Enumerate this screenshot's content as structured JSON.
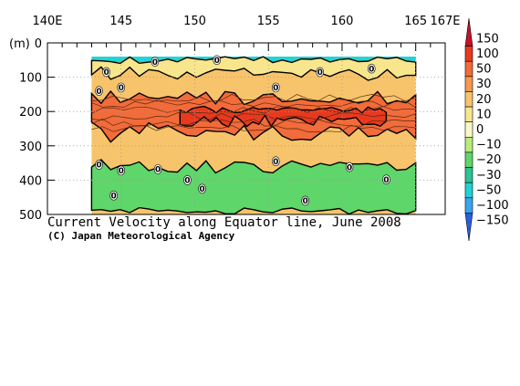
{
  "chart_data": {
    "type": "heatmap",
    "title": "Current Velocity along Equator line, June 2008",
    "credit": "(C) Japan Meteorological Agency",
    "x_ticks": [
      {
        "value": 140,
        "label": "140E"
      },
      {
        "value": 145,
        "label": "145"
      },
      {
        "value": 150,
        "label": "150"
      },
      {
        "value": 155,
        "label": "155"
      },
      {
        "value": 160,
        "label": "160"
      },
      {
        "value": 165,
        "label": "165"
      },
      {
        "value": 167,
        "label": "167E"
      }
    ],
    "y_ticks": [
      {
        "value": 0,
        "label": "0"
      },
      {
        "value": 100,
        "label": "100"
      },
      {
        "value": 200,
        "label": "200"
      },
      {
        "value": 300,
        "label": "300"
      },
      {
        "value": 400,
        "label": "400"
      },
      {
        "value": 500,
        "label": "500"
      }
    ],
    "y_unit": "(m)",
    "xlim": [
      140,
      167
    ],
    "ylim": [
      0,
      500
    ],
    "y_inverted": true,
    "data_extent_x": [
      143,
      165
    ],
    "data_extent_y": [
      40,
      500
    ],
    "grid": true,
    "colorbar": {
      "placement": "right",
      "levels": [
        {
          "label": "150",
          "color": "#c8102a"
        },
        {
          "label": "100",
          "color": "#e8391e"
        },
        {
          "label": "50",
          "color": "#f26b3a"
        },
        {
          "label": "30",
          "color": "#f5994e"
        },
        {
          "label": "20",
          "color": "#f7c46b"
        },
        {
          "label": "10",
          "color": "#f8e68d"
        },
        {
          "label": "0",
          "color": "#fbf8c8"
        },
        {
          "label": "−10",
          "color": "#b9ec7a"
        },
        {
          "label": "−20",
          "color": "#5fd66a"
        },
        {
          "label": "−30",
          "color": "#2ec494"
        },
        {
          "label": "−50",
          "color": "#22d3d3"
        },
        {
          "label": "−100",
          "color": "#3aa6f0"
        },
        {
          "label": "−150",
          "color": "#2a5fe0"
        }
      ]
    },
    "layers": [
      {
        "name": "upper_band",
        "x_start": 143,
        "x_end": 165,
        "y_top_range": [
          40,
          60
        ],
        "y_bot_range": [
          70,
          110
        ],
        "color": "#f8e68d"
      },
      {
        "name": "core_band",
        "x_start": 143,
        "x_end": 165,
        "y_top_range": [
          140,
          180
        ],
        "y_bot_range": [
          230,
          290
        ],
        "color": "#f26b3a"
      },
      {
        "name": "inner_core",
        "x_start": 149,
        "x_end": 163,
        "y_top_range": [
          185,
          205
        ],
        "y_bot_range": [
          210,
          245
        ],
        "color": "#e8391e"
      },
      {
        "name": "lower_green",
        "x_start": 143,
        "x_end": 165,
        "y_top_range": [
          340,
          380
        ],
        "y_bot_range": [
          480,
          500
        ],
        "color": "#5fd66a"
      }
    ],
    "contour_labels": [
      {
        "x": 144.0,
        "y": 85,
        "label": "0"
      },
      {
        "x": 147.3,
        "y": 55,
        "label": "0"
      },
      {
        "x": 151.5,
        "y": 50,
        "label": "0"
      },
      {
        "x": 158.5,
        "y": 85,
        "label": "0"
      },
      {
        "x": 162.0,
        "y": 75,
        "label": "0"
      },
      {
        "x": 155.5,
        "y": 130,
        "label": "0"
      },
      {
        "x": 143.5,
        "y": 140,
        "label": "0"
      },
      {
        "x": 145.0,
        "y": 130,
        "label": "0"
      },
      {
        "x": 143.5,
        "y": 355,
        "label": "0"
      },
      {
        "x": 145.0,
        "y": 372,
        "label": "0"
      },
      {
        "x": 147.5,
        "y": 368,
        "label": "0"
      },
      {
        "x": 149.5,
        "y": 400,
        "label": "0"
      },
      {
        "x": 150.5,
        "y": 425,
        "label": "0"
      },
      {
        "x": 155.5,
        "y": 345,
        "label": "0"
      },
      {
        "x": 157.5,
        "y": 460,
        "label": "0"
      },
      {
        "x": 160.5,
        "y": 362,
        "label": "0"
      },
      {
        "x": 163.0,
        "y": 398,
        "label": "0"
      },
      {
        "x": 144.5,
        "y": 445,
        "label": "0"
      }
    ]
  }
}
